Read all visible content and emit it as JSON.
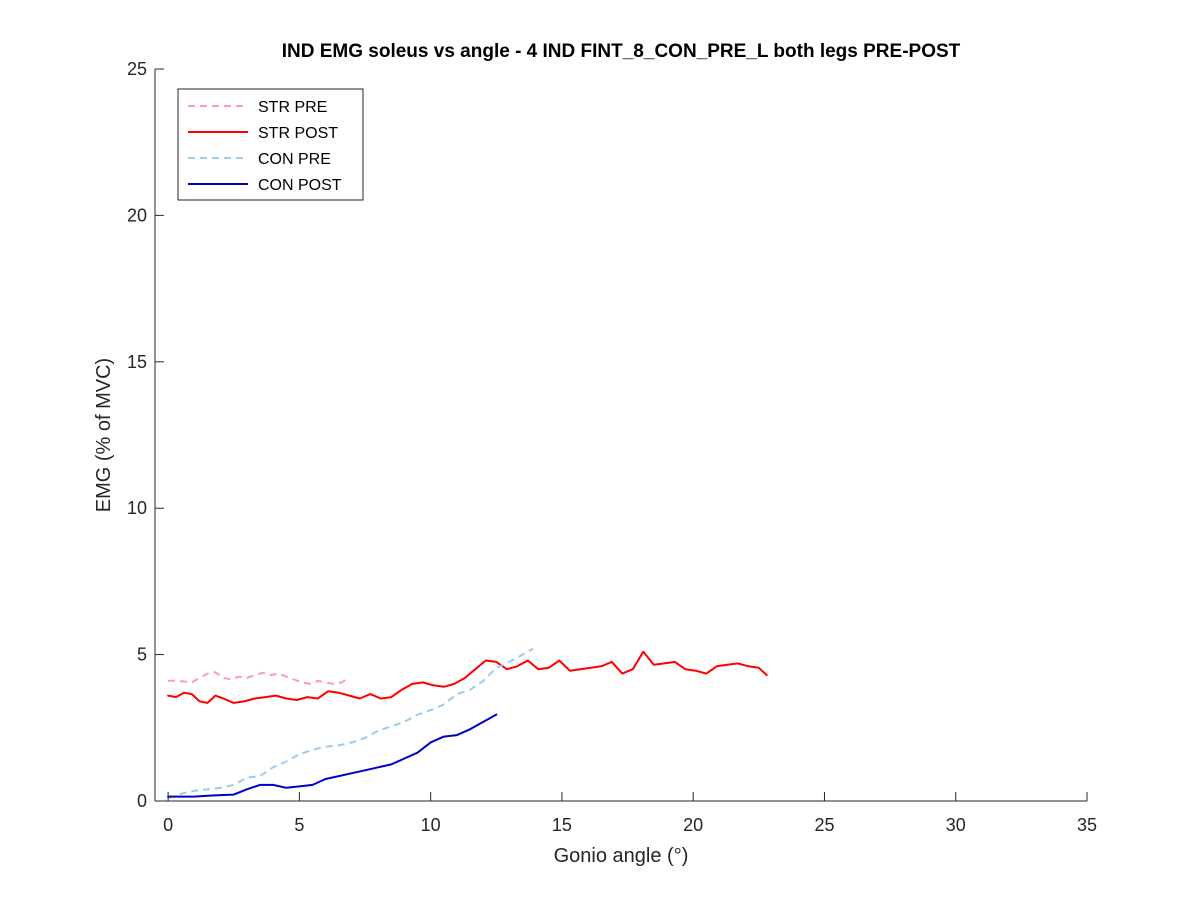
{
  "chart_data": {
    "type": "line",
    "title": "IND EMG soleus vs angle - 4 IND FINT_8_CON_PRE_L both legs PRE-POST",
    "xlabel": "Gonio angle (°)",
    "ylabel": "EMG (% of MVC)",
    "xlim": [
      -0.5,
      35
    ],
    "ylim": [
      0,
      25
    ],
    "xticks": [
      0,
      5,
      10,
      15,
      20,
      25,
      30,
      35
    ],
    "yticks": [
      0,
      5,
      10,
      15,
      20,
      25
    ],
    "xtick_labels": [
      "0",
      "5",
      "10",
      "15",
      "20",
      "25",
      "30",
      "35"
    ],
    "ytick_labels": [
      "0",
      "5",
      "10",
      "15",
      "20",
      "25"
    ],
    "grid": false,
    "legend_position": "top-left",
    "series": [
      {
        "name": "STR PRE",
        "color": "#ff99bb",
        "dashed": true,
        "x": [
          0,
          0.3,
          0.6,
          0.9,
          1.2,
          1.5,
          1.8,
          2.1,
          2.4,
          2.7,
          3.0,
          3.3,
          3.6,
          3.9,
          4.2,
          4.5,
          4.8,
          5.1,
          5.4,
          5.7,
          6.0,
          6.3,
          6.6,
          6.9
        ],
        "y": [
          4.1,
          4.12,
          4.08,
          4.05,
          4.2,
          4.35,
          4.4,
          4.2,
          4.15,
          4.25,
          4.2,
          4.3,
          4.38,
          4.3,
          4.35,
          4.25,
          4.15,
          4.05,
          4.0,
          4.1,
          4.05,
          4.0,
          4.05,
          4.2
        ]
      },
      {
        "name": "STR POST",
        "color": "#ff0000",
        "dashed": false,
        "x": [
          0,
          0.3,
          0.6,
          0.9,
          1.2,
          1.5,
          1.8,
          2.1,
          2.5,
          2.9,
          3.3,
          3.7,
          4.1,
          4.5,
          4.9,
          5.3,
          5.7,
          6.1,
          6.5,
          6.9,
          7.3,
          7.7,
          8.1,
          8.5,
          8.9,
          9.3,
          9.7,
          10.1,
          10.5,
          10.9,
          11.3,
          11.7,
          12.1,
          12.5,
          12.9,
          13.3,
          13.7,
          14.1,
          14.5,
          14.9,
          15.3,
          15.7,
          16.1,
          16.5,
          16.9,
          17.3,
          17.7,
          18.1,
          18.5,
          18.9,
          19.3,
          19.7,
          20.1,
          20.5,
          20.9,
          21.3,
          21.7,
          22.1,
          22.5,
          22.8
        ],
        "y": [
          3.6,
          3.55,
          3.7,
          3.65,
          3.4,
          3.35,
          3.6,
          3.5,
          3.35,
          3.4,
          3.5,
          3.55,
          3.6,
          3.5,
          3.45,
          3.55,
          3.5,
          3.75,
          3.7,
          3.6,
          3.5,
          3.65,
          3.5,
          3.55,
          3.8,
          4.0,
          4.05,
          3.95,
          3.9,
          4.0,
          4.2,
          4.5,
          4.8,
          4.75,
          4.5,
          4.6,
          4.8,
          4.5,
          4.55,
          4.8,
          4.45,
          4.5,
          4.55,
          4.6,
          4.75,
          4.35,
          4.5,
          5.1,
          4.65,
          4.7,
          4.75,
          4.5,
          4.45,
          4.35,
          4.6,
          4.65,
          4.7,
          4.6,
          4.55,
          4.3
        ]
      },
      {
        "name": "CON PRE",
        "color": "#99ccf0",
        "dashed": true,
        "x": [
          0,
          0.5,
          1.0,
          1.5,
          2.0,
          2.5,
          3.0,
          3.5,
          4.0,
          4.5,
          5.0,
          5.5,
          6.0,
          6.5,
          7.0,
          7.5,
          8.0,
          8.5,
          9.0,
          9.5,
          10.0,
          10.5,
          11.0,
          11.5,
          12.0,
          12.5,
          13.0,
          13.5,
          13.9
        ],
        "y": [
          0.1,
          0.25,
          0.35,
          0.4,
          0.45,
          0.55,
          0.8,
          0.85,
          1.15,
          1.35,
          1.6,
          1.75,
          1.85,
          1.9,
          2.0,
          2.15,
          2.4,
          2.55,
          2.7,
          2.95,
          3.1,
          3.3,
          3.65,
          3.8,
          4.1,
          4.55,
          4.75,
          5.0,
          5.2
        ]
      },
      {
        "name": "CON POST",
        "color": "#0000cc",
        "dashed": false,
        "x": [
          0,
          0.5,
          1.0,
          1.5,
          2.0,
          2.5,
          3.0,
          3.5,
          4.0,
          4.5,
          5.0,
          5.5,
          6.0,
          6.5,
          7.0,
          7.5,
          8.0,
          8.5,
          9.0,
          9.5,
          10.0,
          10.5,
          11.0,
          11.5,
          12.0,
          12.5
        ],
        "y": [
          0.15,
          0.15,
          0.15,
          0.18,
          0.2,
          0.22,
          0.4,
          0.55,
          0.55,
          0.45,
          0.5,
          0.55,
          0.75,
          0.85,
          0.95,
          1.05,
          1.15,
          1.25,
          1.45,
          1.65,
          2.0,
          2.2,
          2.25,
          2.45,
          2.7,
          2.95
        ]
      }
    ]
  }
}
